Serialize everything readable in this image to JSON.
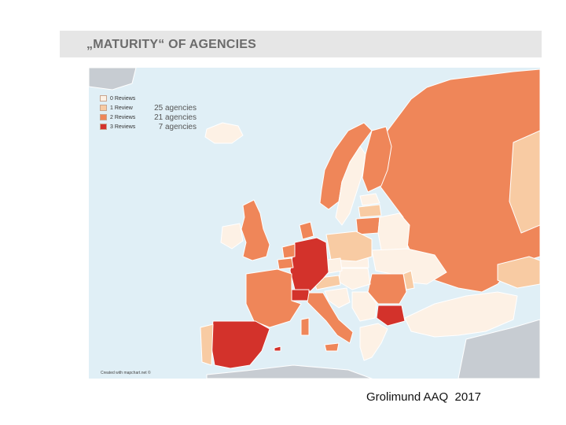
{
  "header": {
    "title": "„MATURITY“ OF AGENCIES"
  },
  "legend": [
    {
      "label": "0 Reviews",
      "count": "",
      "color": "#fdf1e5"
    },
    {
      "label": "1 Review",
      "count": "25 agencies",
      "color": "#f8cba3"
    },
    {
      "label": "2 Reviews",
      "count": "21 agencies",
      "color": "#ef8659"
    },
    {
      "label": "3 Reviews",
      "count": "7 agencies",
      "color": "#d3322b"
    }
  ],
  "map": {
    "colors": {
      "sea": "#e0eff6",
      "non_member": "#c7ccd2",
      "land_outline": "#ffffff"
    },
    "countries_by_reviews": {
      "3": [
        "Germany",
        "Spain",
        "Switzerland",
        "Bulgaria"
      ],
      "2": [
        "Russia",
        "Norway",
        "United Kingdom",
        "France",
        "Belgium",
        "Netherlands",
        "Denmark",
        "Italy",
        "Romania",
        "Finland",
        "Lithuania"
      ],
      "1": [
        "Latvia",
        "Poland",
        "Portugal",
        "Moldova",
        "Georgia",
        "Austria"
      ],
      "0": [
        "Sweden",
        "Ireland",
        "Iceland",
        "Estonia",
        "Belarus",
        "Ukraine",
        "Czech Republic",
        "Slovakia",
        "Hungary",
        "Croatia",
        "Serbia",
        "Greece",
        "Turkey",
        "Slovenia"
      ]
    },
    "credit": "Created with mapchart.net ©"
  },
  "footer": {
    "text": "Grolimund AAQ  2017"
  }
}
